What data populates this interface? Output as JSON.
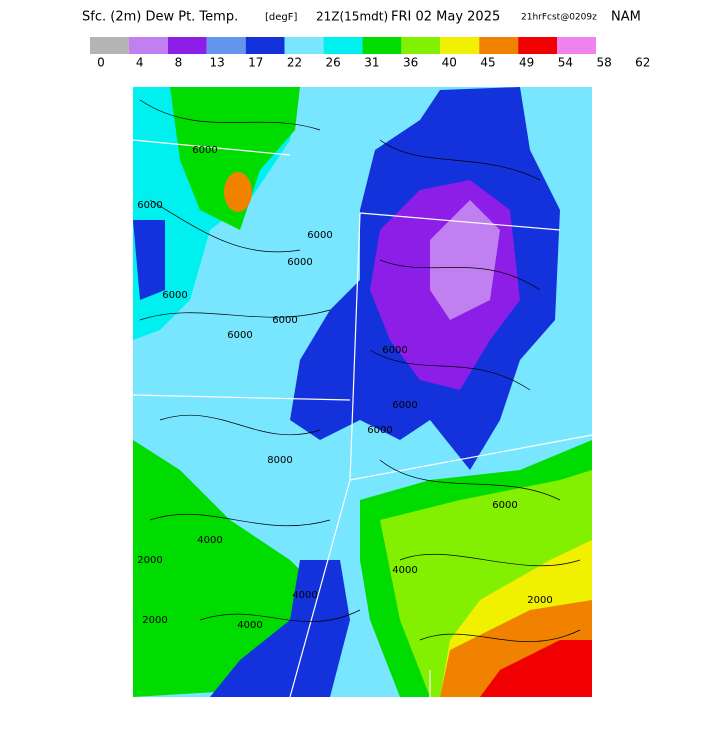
{
  "header": {
    "title": "Sfc. (2m) Dew Pt. Temp.",
    "units": "[degF]",
    "valid": "21Z(15mdt)",
    "date": "FRI 02 May 2025",
    "forecast": "21hrFcst@0209z",
    "model": "NAM"
  },
  "colorbar": {
    "colors": [
      "#b4b4b4",
      "#c080f0",
      "#8c1ee8",
      "#6496f0",
      "#1432dc",
      "#78e6ff",
      "#00f0f0",
      "#00dc00",
      "#82f000",
      "#f0f000",
      "#f08200",
      "#f00000",
      "#f082f0"
    ],
    "labels": [
      "0",
      "4",
      "8",
      "13",
      "17",
      "22",
      "26",
      "31",
      "36",
      "40",
      "45",
      "49",
      "54",
      "58",
      "62"
    ]
  },
  "contour_labels": [
    "6000",
    "6000",
    "6000",
    "6000",
    "6000",
    "6000",
    "6000",
    "6000",
    "8000",
    "6000",
    "6000",
    "4000",
    "2000",
    "2000",
    "4000",
    "4000",
    "4000",
    "6000",
    "2000"
  ]
}
